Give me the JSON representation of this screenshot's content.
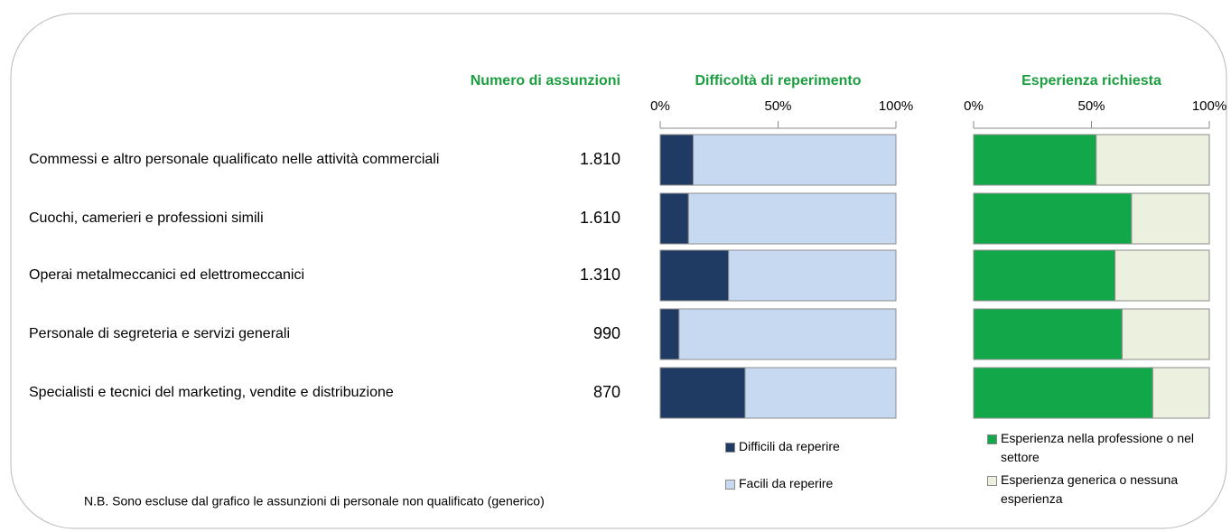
{
  "hires": {
    "title": "Numero di assunzioni",
    "values": [
      "1.810",
      "1.610",
      "1.310",
      "990",
      "870"
    ]
  },
  "note": "N.B. Sono escluse dal grafico le assunzioni di personale non qualificato (generico)",
  "chart_data": [
    {
      "type": "stacked-bar-horizontal",
      "title": "Difficoltà di reperimento",
      "categories": [
        "Commessi e altro personale qualificato nelle attività commerciali",
        "Cuochi, camerieri e professioni simili",
        "Operai metalmeccanici ed elettromeccanici",
        "Personale di segreteria e servizi generali",
        "Specialisti e tecnici del marketing, vendite e distribuzione"
      ],
      "series": [
        {
          "name": "Difficili da reperire",
          "color": "#1f3b63",
          "values": [
            14,
            12,
            29,
            8,
            36
          ]
        },
        {
          "name": "Facili da reperire",
          "color": "#c6d9f1",
          "values": [
            86,
            88,
            71,
            92,
            64
          ]
        }
      ],
      "xlim": [
        0,
        100
      ],
      "xticks": [
        {
          "value": 0,
          "label": "0%"
        },
        {
          "value": 50,
          "label": "50%"
        },
        {
          "value": 100,
          "label": "100%"
        }
      ]
    },
    {
      "type": "stacked-bar-horizontal",
      "title": "Esperienza richiesta",
      "series": [
        {
          "name": "Esperienza nella professione o nel settore",
          "color": "#12a84a",
          "values": [
            52,
            67,
            60,
            63,
            76
          ]
        },
        {
          "name": "Esperienza generica o nessuna esperienza",
          "color": "#ebf1de",
          "values": [
            48,
            33,
            40,
            37,
            24
          ]
        }
      ],
      "xlim": [
        0,
        100
      ],
      "xticks": [
        {
          "value": 0,
          "label": "0%"
        },
        {
          "value": 50,
          "label": "50%"
        },
        {
          "value": 100,
          "label": "100%"
        }
      ]
    }
  ]
}
